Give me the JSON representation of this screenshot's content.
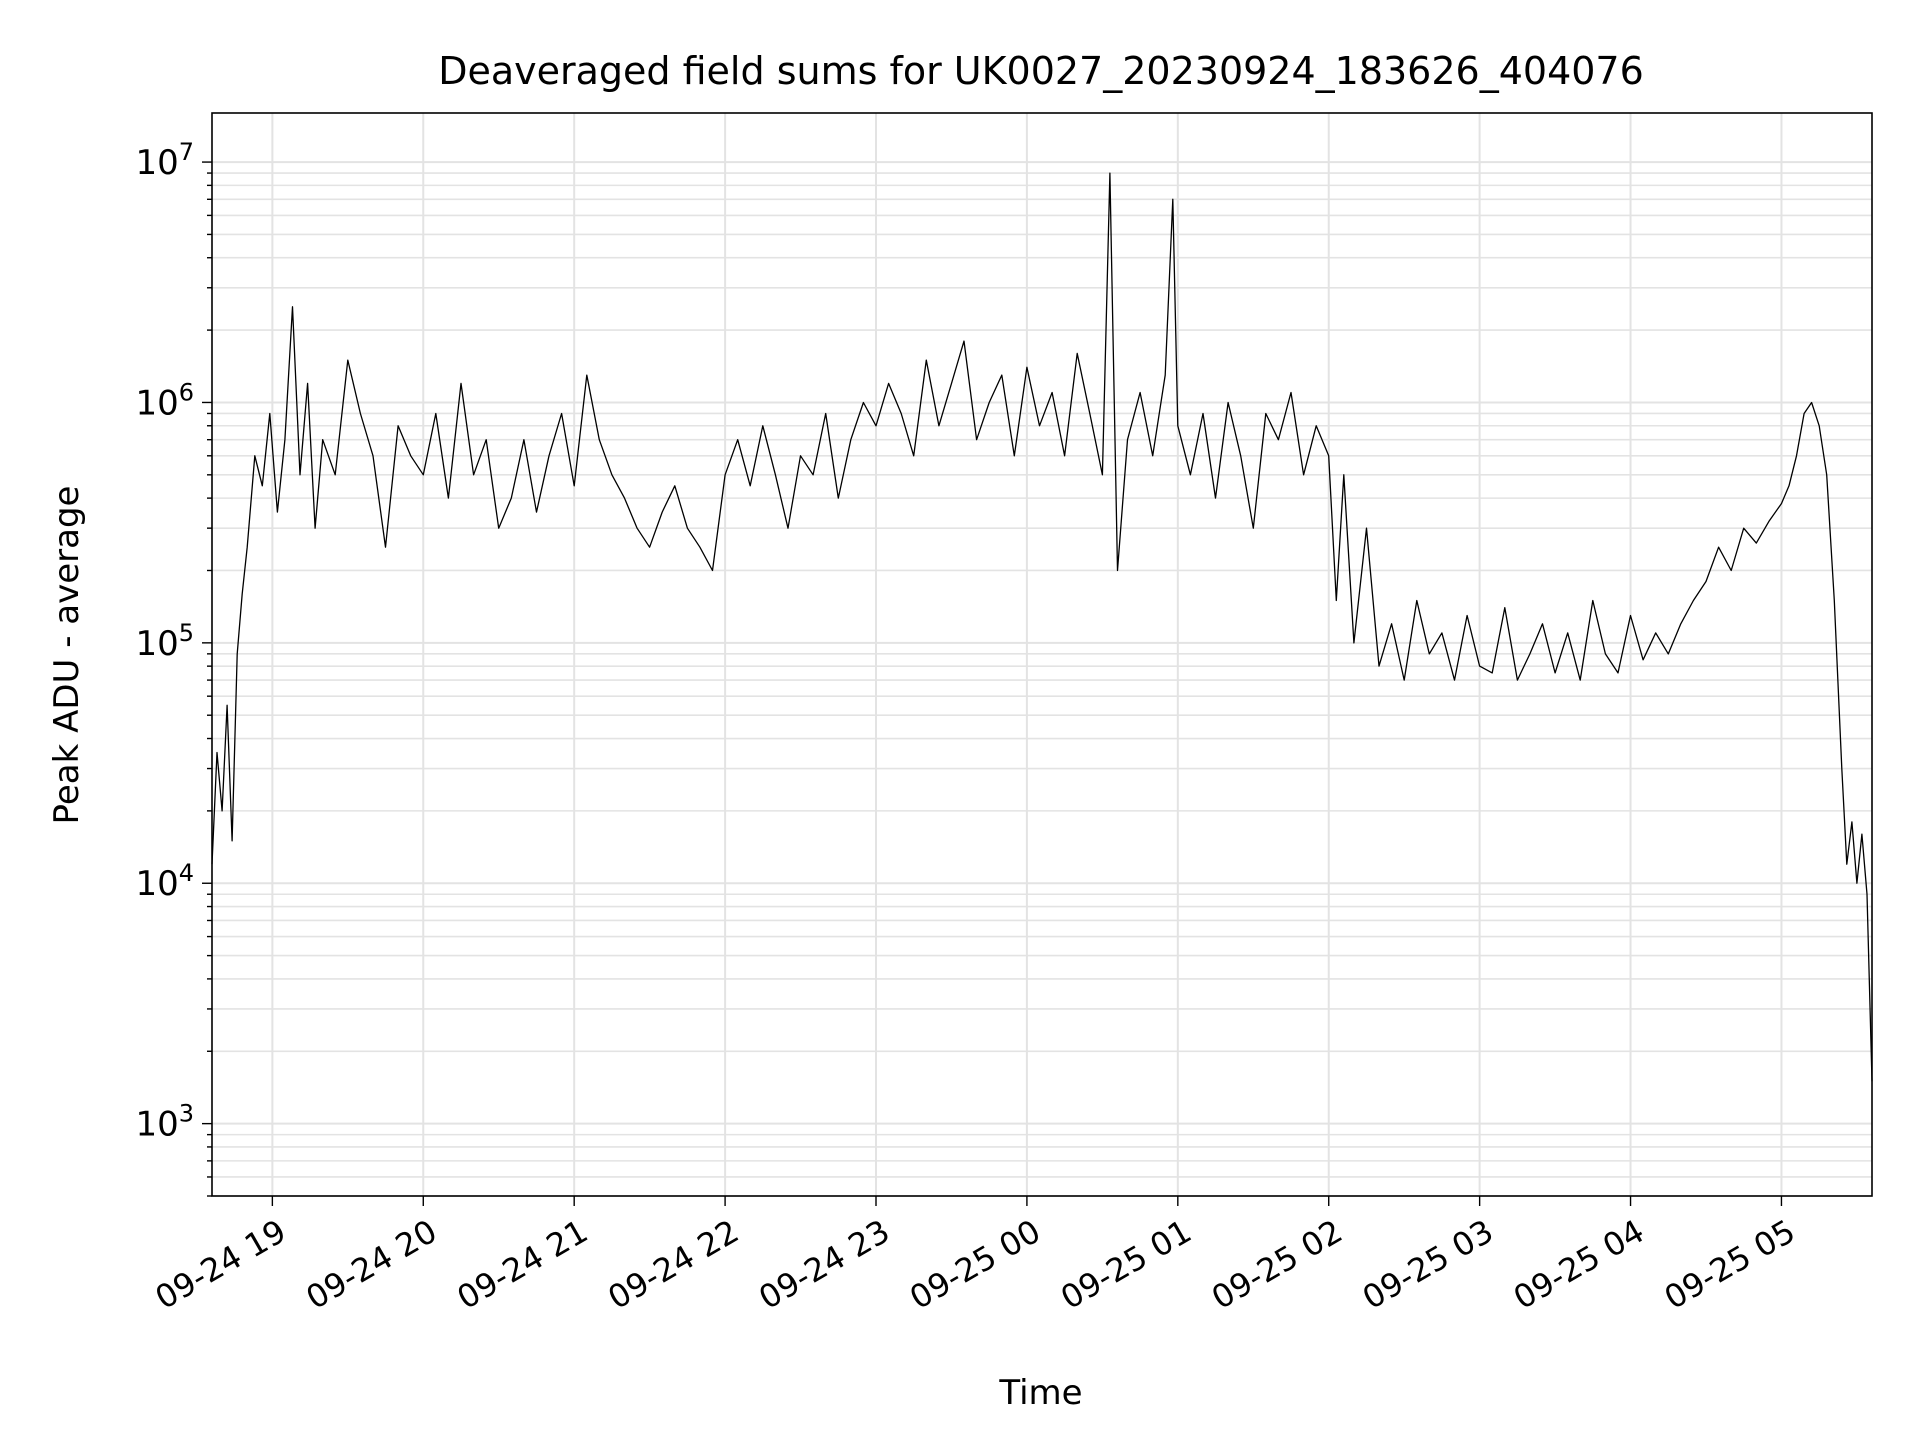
{
  "chart_data": {
    "type": "line",
    "title": "Deaveraged field sums for UK0027_20230924_183626_404076",
    "xlabel": "Time",
    "ylabel": "Peak ADU - average",
    "yscale": "log",
    "ylim": [
      500,
      16000000
    ],
    "xlim": [
      "09-24 18:36",
      "09-25 05:36"
    ],
    "x_ticks": [
      "09-24 19",
      "09-24 20",
      "09-24 21",
      "09-24 22",
      "09-24 23",
      "09-25 00",
      "09-25 01",
      "09-25 02",
      "09-25 03",
      "09-25 04",
      "09-25 05"
    ],
    "y_ticks": [
      {
        "base": "10",
        "exp": "3",
        "value": 1000
      },
      {
        "base": "10",
        "exp": "4",
        "value": 10000
      },
      {
        "base": "10",
        "exp": "5",
        "value": 100000
      },
      {
        "base": "10",
        "exp": "6",
        "value": 1000000
      },
      {
        "base": "10",
        "exp": "7",
        "value": 10000000
      }
    ],
    "grid": true,
    "line_color": "#000000",
    "series": [
      {
        "x": [
          "09-24 18:36",
          "09-24 18:38",
          "09-24 18:40",
          "09-24 18:42",
          "09-24 18:44",
          "09-24 18:46",
          "09-24 18:48",
          "09-24 18:50",
          "09-24 18:53",
          "09-24 18:56",
          "09-24 18:59",
          "09-24 19:02",
          "09-24 19:05",
          "09-24 19:08",
          "09-24 19:11",
          "09-24 19:14",
          "09-24 19:17",
          "09-24 19:20",
          "09-24 19:25",
          "09-24 19:30",
          "09-24 19:35",
          "09-24 19:40",
          "09-24 19:45",
          "09-24 19:50",
          "09-24 19:55",
          "09-24 20:00",
          "09-24 20:05",
          "09-24 20:10",
          "09-24 20:15",
          "09-24 20:20",
          "09-24 20:25",
          "09-24 20:30",
          "09-24 20:35",
          "09-24 20:40",
          "09-24 20:45",
          "09-24 20:50",
          "09-24 20:55",
          "09-24 21:00",
          "09-24 21:05",
          "09-24 21:10",
          "09-24 21:15",
          "09-24 21:20",
          "09-24 21:25",
          "09-24 21:30",
          "09-24 21:35",
          "09-24 21:40",
          "09-24 21:45",
          "09-24 21:50",
          "09-24 21:55",
          "09-24 22:00",
          "09-24 22:05",
          "09-24 22:10",
          "09-24 22:15",
          "09-24 22:20",
          "09-24 22:25",
          "09-24 22:30",
          "09-24 22:35",
          "09-24 22:40",
          "09-24 22:45",
          "09-24 22:50",
          "09-24 22:55",
          "09-24 23:00",
          "09-24 23:05",
          "09-24 23:10",
          "09-24 23:15",
          "09-24 23:20",
          "09-24 23:25",
          "09-24 23:30",
          "09-24 23:35",
          "09-24 23:40",
          "09-24 23:45",
          "09-24 23:50",
          "09-24 23:55",
          "09-25 00:00",
          "09-25 00:05",
          "09-25 00:10",
          "09-25 00:15",
          "09-25 00:20",
          "09-25 00:25",
          "09-25 00:30",
          "09-25 00:33",
          "09-25 00:36",
          "09-25 00:40",
          "09-25 00:45",
          "09-25 00:50",
          "09-25 00:55",
          "09-25 00:58",
          "09-25 01:00",
          "09-25 01:05",
          "09-25 01:10",
          "09-25 01:15",
          "09-25 01:20",
          "09-25 01:25",
          "09-25 01:30",
          "09-25 01:35",
          "09-25 01:40",
          "09-25 01:45",
          "09-25 01:50",
          "09-25 01:55",
          "09-25 02:00",
          "09-25 02:03",
          "09-25 02:06",
          "09-25 02:10",
          "09-25 02:15",
          "09-25 02:20",
          "09-25 02:25",
          "09-25 02:30",
          "09-25 02:35",
          "09-25 02:40",
          "09-25 02:45",
          "09-25 02:50",
          "09-25 02:55",
          "09-25 03:00",
          "09-25 03:05",
          "09-25 03:10",
          "09-25 03:15",
          "09-25 03:20",
          "09-25 03:25",
          "09-25 03:30",
          "09-25 03:35",
          "09-25 03:40",
          "09-25 03:45",
          "09-25 03:50",
          "09-25 03:55",
          "09-25 04:00",
          "09-25 04:05",
          "09-25 04:10",
          "09-25 04:15",
          "09-25 04:20",
          "09-25 04:25",
          "09-25 04:30",
          "09-25 04:35",
          "09-25 04:40",
          "09-25 04:45",
          "09-25 04:50",
          "09-25 04:55",
          "09-25 05:00",
          "09-25 05:03",
          "09-25 05:06",
          "09-25 05:09",
          "09-25 05:12",
          "09-25 05:15",
          "09-25 05:18",
          "09-25 05:21",
          "09-25 05:24",
          "09-25 05:26",
          "09-25 05:28",
          "09-25 05:30",
          "09-25 05:32",
          "09-25 05:34",
          "09-25 05:36"
        ],
        "y": [
          12000,
          35000,
          20000,
          55000,
          15000,
          90000,
          160000,
          250000,
          600000,
          450000,
          900000,
          350000,
          700000,
          2500000,
          500000,
          1200000,
          300000,
          700000,
          500000,
          1500000,
          900000,
          600000,
          250000,
          800000,
          600000,
          500000,
          900000,
          400000,
          1200000,
          500000,
          700000,
          300000,
          400000,
          700000,
          350000,
          600000,
          900000,
          450000,
          1300000,
          700000,
          500000,
          400000,
          300000,
          250000,
          350000,
          450000,
          300000,
          250000,
          200000,
          500000,
          700000,
          450000,
          800000,
          500000,
          300000,
          600000,
          500000,
          900000,
          400000,
          700000,
          1000000,
          800000,
          1200000,
          900000,
          600000,
          1500000,
          800000,
          1200000,
          1800000,
          700000,
          1000000,
          1300000,
          600000,
          1400000,
          800000,
          1100000,
          600000,
          1600000,
          900000,
          500000,
          9000000,
          200000,
          700000,
          1100000,
          600000,
          1300000,
          7000000,
          800000,
          500000,
          900000,
          400000,
          1000000,
          600000,
          300000,
          900000,
          700000,
          1100000,
          500000,
          800000,
          600000,
          150000,
          500000,
          100000,
          300000,
          80000,
          120000,
          70000,
          150000,
          90000,
          110000,
          70000,
          130000,
          80000,
          75000,
          140000,
          70000,
          90000,
          120000,
          75000,
          110000,
          70000,
          150000,
          90000,
          75000,
          130000,
          85000,
          110000,
          90000,
          120000,
          150000,
          180000,
          250000,
          200000,
          300000,
          260000,
          320000,
          380000,
          450000,
          600000,
          900000,
          1000000,
          800000,
          500000,
          150000,
          30000,
          12000,
          18000,
          10000,
          16000,
          9000,
          1500
        ]
      }
    ]
  }
}
